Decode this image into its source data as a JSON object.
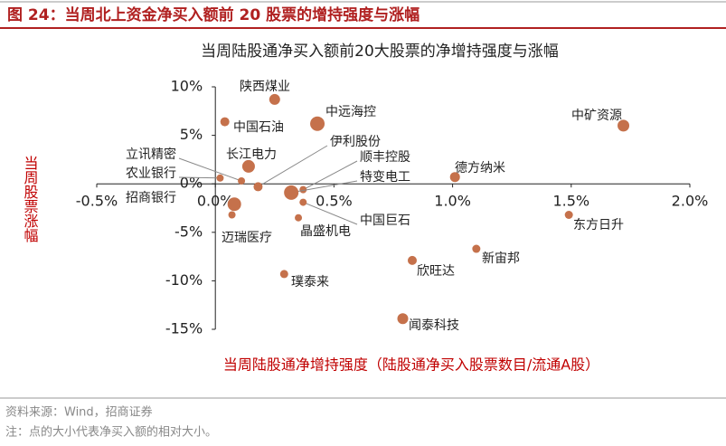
{
  "figure_caption": "图 24：当周北上资金净买入额前 20 股票的增持强度与涨幅",
  "chart_data": {
    "type": "scatter",
    "title": "当周陆股通净买入额前20大股票的净增持强度与涨幅",
    "x_label": "当周陆股通净增持强度（陆股通净买入股票数目/流通A股）",
    "y_label": "当周股票涨幅",
    "color": "#c5714b",
    "labels": [
      "陕西煤业",
      "中国石油",
      "中远海控",
      "中矿资源",
      "长江电力",
      "立讯精密",
      "农业银行",
      "招商银行",
      "迈瑞医疗",
      "伊利股份",
      "顺丰控股",
      "特变电工",
      "中国巨石",
      "晶盛机电",
      "德方纳米",
      "东方日升",
      "新宙邦",
      "欣旺达",
      "璞泰来",
      "闻泰科技"
    ],
    "x": [
      0.25,
      0.04,
      0.43,
      1.72,
      0.14,
      0.11,
      0.02,
      0.08,
      0.07,
      0.18,
      0.37,
      0.32,
      0.37,
      0.35,
      1.01,
      1.49,
      1.1,
      0.83,
      0.29,
      0.79
    ],
    "y": [
      8.7,
      6.4,
      6.2,
      6.0,
      1.8,
      0.3,
      0.6,
      -2.1,
      -3.2,
      -0.3,
      -0.6,
      -0.9,
      -1.9,
      -3.5,
      0.7,
      -3.2,
      -6.7,
      -7.9,
      -9.3,
      -13.9
    ],
    "sizes": [
      6,
      5,
      8,
      6.5,
      7,
      4,
      4,
      7.5,
      4,
      5,
      4,
      8,
      4,
      4,
      5.5,
      4.5,
      4.5,
      5,
      4.5,
      6
    ],
    "xlim": [
      -0.5,
      2.0
    ],
    "xticks": [
      {
        "value": -0.5,
        "label": "-0.5%"
      },
      {
        "value": 0,
        "label": "0.0%"
      },
      {
        "value": 0.5,
        "label": "0.5%"
      },
      {
        "value": 1.0,
        "label": "1.0%"
      },
      {
        "value": 1.5,
        "label": "1.5%"
      },
      {
        "value": 2.0,
        "label": "2.0%"
      }
    ],
    "ylim": [
      -15,
      10
    ],
    "yticks": [
      {
        "value": 10,
        "label": "10%"
      },
      {
        "value": 5,
        "label": "5%"
      },
      {
        "value": 0,
        "label": "0%"
      },
      {
        "value": -5,
        "label": "-5%"
      },
      {
        "value": -10,
        "label": "-10%"
      },
      {
        "value": -15,
        "label": "-15%"
      }
    ]
  },
  "source": "资料来源：Wind，招商证券",
  "note": "注：点的大小代表净买入额的相对大小。"
}
